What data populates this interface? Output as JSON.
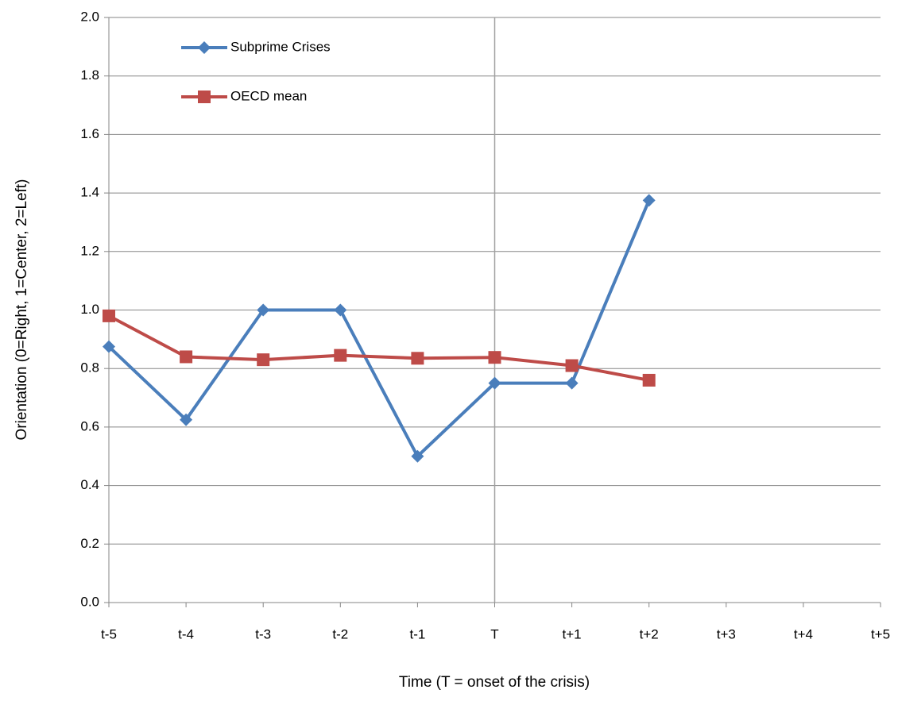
{
  "chart_data": {
    "type": "line",
    "x_label": "Time (T = onset of the crisis)",
    "y_label": "Orientation (0=Right, 1=Center, 2=Left)",
    "categories": [
      "t-5",
      "t-4",
      "t-3",
      "t-2",
      "t-1",
      "T",
      "t+1",
      "t+2",
      "t+3",
      "t+4",
      "t+5"
    ],
    "series": [
      {
        "name": "Subprime Crises",
        "color": "#4a7ebb",
        "marker": "diamond",
        "values": [
          0.875,
          0.625,
          1.0,
          1.0,
          0.5,
          0.75,
          0.75,
          1.375,
          null,
          null,
          null
        ]
      },
      {
        "name": "OECD mean",
        "color": "#be4b48",
        "marker": "square",
        "values": [
          0.98,
          0.84,
          0.83,
          0.845,
          0.835,
          0.838,
          0.81,
          0.76,
          null,
          null,
          null
        ]
      }
    ],
    "ylim": [
      0,
      2
    ],
    "yticks": [
      {
        "value": 0,
        "label": "0.0"
      },
      0.2,
      0.4,
      0.6,
      0.8,
      {
        "value": 1,
        "label": "1.0"
      },
      1.2,
      1.4,
      1.6,
      1.8,
      {
        "value": 2,
        "label": "2.0"
      }
    ],
    "grid": true,
    "reference_line_category": "T",
    "legend": "top-left"
  }
}
